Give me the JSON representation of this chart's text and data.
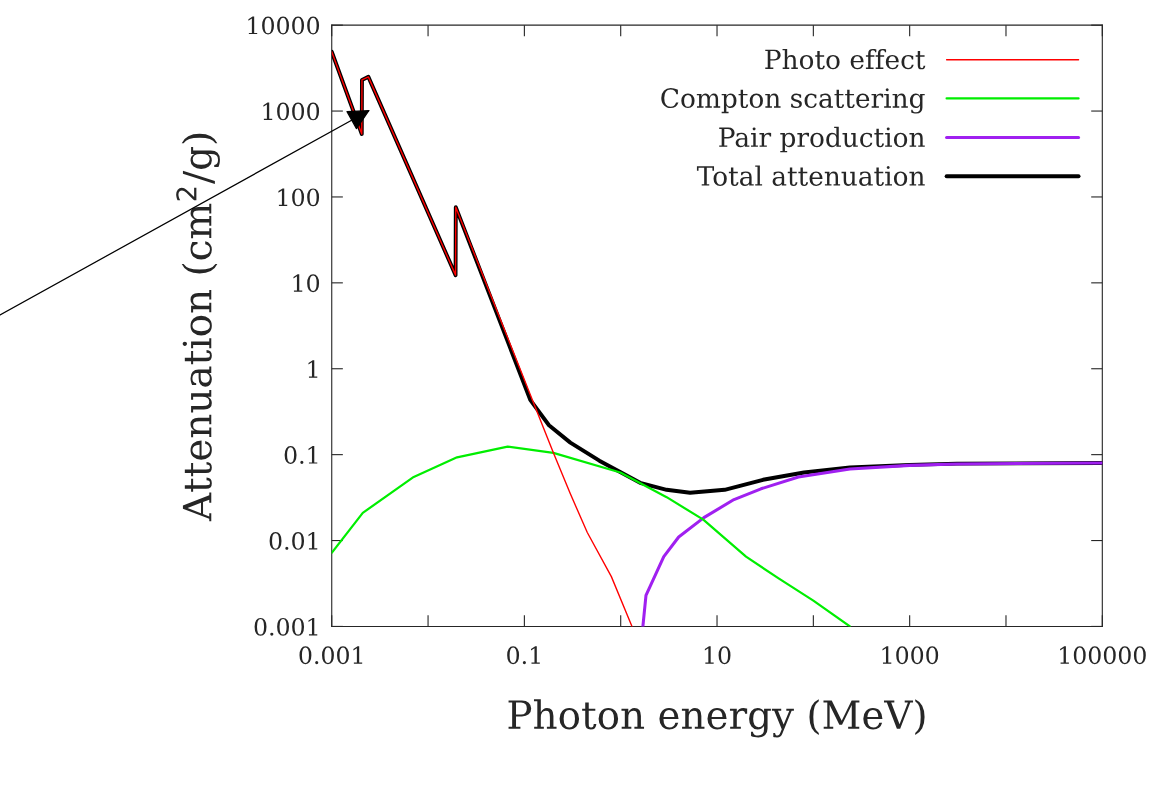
{
  "chart_data": {
    "type": "line",
    "xlabel": "Photon energy (MeV)",
    "ylabel": "Attenuation (cm$^{2}$/g)",
    "log": "xy",
    "xlim": [
      0.001,
      100000
    ],
    "ylim": [
      0.001,
      10000
    ],
    "xticks": [
      0.001,
      {
        "value": 0.01,
        "label": null
      },
      0.1,
      {
        "value": 1,
        "label": null
      },
      10,
      {
        "value": 100,
        "label": null
      },
      1000,
      {
        "value": 10000,
        "label": null
      },
      100000
    ],
    "yticks": [
      0.001,
      0.01,
      0.1,
      1,
      10,
      100,
      1000,
      10000
    ],
    "legend": "top right",
    "grid": false,
    "series": [
      {
        "name": "Photo effect",
        "color": "#ff0000",
        "x": [
          0.001,
          0.00205,
          0.00206,
          0.0024,
          0.0193,
          0.0194,
          0.2,
          0.3,
          0.45,
          0.8,
          1.31
        ],
        "values": [
          4900,
          540,
          2300,
          2500,
          12.3,
          76,
          0.105,
          0.035,
          0.0124,
          0.0038,
          0.001
        ]
      },
      {
        "name": "Compton scattering",
        "color": "#00ee00",
        "x": [
          0.001,
          0.0021,
          0.0071,
          0.02,
          0.067,
          0.2,
          0.99,
          3,
          7.2,
          20,
          44,
          100,
          240
        ],
        "values": [
          0.0072,
          0.021,
          0.055,
          0.093,
          0.124,
          0.105,
          0.062,
          0.032,
          0.0175,
          0.0065,
          0.0036,
          0.002,
          0.001
        ]
      },
      {
        "name": "Pair production",
        "color": "#a020f0",
        "x": [
          1.7,
          1.83,
          2.8,
          4,
          7.3,
          15,
          28.6,
          70,
          240,
          1000,
          3100,
          100000
        ],
        "values": [
          0.001,
          0.0023,
          0.0065,
          0.011,
          0.0185,
          0.03,
          0.04,
          0.055,
          0.068,
          0.075,
          0.078,
          0.08
        ]
      },
      {
        "name": "Total attenuation",
        "color": "#000000",
        "x": [
          0.001,
          0.00205,
          0.00206,
          0.0024,
          0.0193,
          0.0194,
          0.115,
          0.18,
          0.3,
          0.6,
          1.59,
          3,
          5.25,
          12,
          30,
          80,
          240,
          1000,
          3100,
          100000
        ],
        "values": [
          4900,
          540,
          2300,
          2500,
          12.3,
          76,
          0.435,
          0.22,
          0.138,
          0.085,
          0.047,
          0.039,
          0.036,
          0.039,
          0.051,
          0.062,
          0.071,
          0.076,
          0.0785,
          0.08
        ]
      }
    ]
  }
}
